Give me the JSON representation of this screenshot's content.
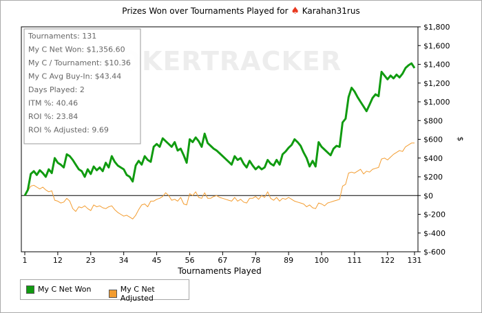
{
  "title": {
    "prefix": "Prizes Won over Tournaments Played for",
    "player": "Karahan31rus"
  },
  "watermark": "POKERTRACKER",
  "stats": [
    "Tournaments: 131",
    "My C Net Won: $1,356.60",
    "My C / Tournament: $10.36",
    "My C Avg Buy-In: $43.44",
    "Days Played: 2",
    "ITM %: 40.46",
    "ROI %: 23.84",
    "ROI % Adjusted: 9.69"
  ],
  "colors": {
    "net_won": "#109b10",
    "adjusted": "#f39c2f",
    "zero_line": "#000000"
  },
  "chart_data": {
    "type": "line",
    "title": "Prizes Won over Tournaments Played for Karahan31rus",
    "xlabel": "Tournaments Played",
    "ylabel": "$",
    "xlim": [
      1,
      131
    ],
    "ylim": [
      -600,
      1800
    ],
    "x_ticks": [
      1,
      12,
      23,
      34,
      45,
      56,
      67,
      78,
      89,
      100,
      111,
      122,
      131
    ],
    "y_ticks": [
      -600,
      -400,
      -200,
      0,
      200,
      400,
      600,
      800,
      1000,
      1200,
      1400,
      1600,
      1800
    ],
    "y_tick_labels": [
      "$-600",
      "$-400",
      "$-200",
      "$0",
      "$200",
      "$400",
      "$600",
      "$800",
      "$1,000",
      "$1,200",
      "$1,400",
      "$1,600",
      "$1,800"
    ],
    "legend_position": "bottom-left",
    "series": [
      {
        "name": "My C Net Won",
        "points": [
          [
            1,
            0
          ],
          [
            2,
            60
          ],
          [
            3,
            230
          ],
          [
            4,
            260
          ],
          [
            5,
            220
          ],
          [
            6,
            270
          ],
          [
            7,
            240
          ],
          [
            8,
            200
          ],
          [
            9,
            280
          ],
          [
            10,
            240
          ],
          [
            11,
            400
          ],
          [
            12,
            350
          ],
          [
            13,
            330
          ],
          [
            14,
            300
          ],
          [
            15,
            440
          ],
          [
            16,
            420
          ],
          [
            17,
            380
          ],
          [
            18,
            330
          ],
          [
            19,
            280
          ],
          [
            20,
            260
          ],
          [
            21,
            200
          ],
          [
            22,
            280
          ],
          [
            23,
            230
          ],
          [
            24,
            310
          ],
          [
            25,
            270
          ],
          [
            26,
            300
          ],
          [
            27,
            260
          ],
          [
            28,
            350
          ],
          [
            29,
            300
          ],
          [
            30,
            420
          ],
          [
            31,
            360
          ],
          [
            32,
            320
          ],
          [
            33,
            300
          ],
          [
            34,
            280
          ],
          [
            35,
            220
          ],
          [
            36,
            200
          ],
          [
            37,
            150
          ],
          [
            38,
            320
          ],
          [
            39,
            370
          ],
          [
            40,
            330
          ],
          [
            41,
            420
          ],
          [
            42,
            380
          ],
          [
            43,
            360
          ],
          [
            44,
            520
          ],
          [
            45,
            550
          ],
          [
            46,
            520
          ],
          [
            47,
            610
          ],
          [
            48,
            580
          ],
          [
            49,
            550
          ],
          [
            50,
            520
          ],
          [
            51,
            570
          ],
          [
            52,
            480
          ],
          [
            53,
            500
          ],
          [
            54,
            430
          ],
          [
            55,
            350
          ],
          [
            56,
            600
          ],
          [
            57,
            570
          ],
          [
            58,
            620
          ],
          [
            59,
            580
          ],
          [
            60,
            520
          ],
          [
            61,
            660
          ],
          [
            62,
            560
          ],
          [
            63,
            530
          ],
          [
            64,
            500
          ],
          [
            65,
            480
          ],
          [
            66,
            450
          ],
          [
            67,
            420
          ],
          [
            68,
            390
          ],
          [
            69,
            360
          ],
          [
            70,
            330
          ],
          [
            71,
            420
          ],
          [
            72,
            380
          ],
          [
            73,
            400
          ],
          [
            74,
            340
          ],
          [
            75,
            300
          ],
          [
            76,
            370
          ],
          [
            77,
            320
          ],
          [
            78,
            280
          ],
          [
            79,
            310
          ],
          [
            80,
            280
          ],
          [
            81,
            300
          ],
          [
            82,
            380
          ],
          [
            83,
            340
          ],
          [
            84,
            320
          ],
          [
            85,
            380
          ],
          [
            86,
            330
          ],
          [
            87,
            440
          ],
          [
            88,
            470
          ],
          [
            89,
            510
          ],
          [
            90,
            540
          ],
          [
            91,
            600
          ],
          [
            92,
            570
          ],
          [
            93,
            530
          ],
          [
            94,
            460
          ],
          [
            95,
            400
          ],
          [
            96,
            310
          ],
          [
            97,
            370
          ],
          [
            98,
            310
          ],
          [
            99,
            570
          ],
          [
            100,
            520
          ],
          [
            101,
            490
          ],
          [
            102,
            460
          ],
          [
            103,
            430
          ],
          [
            104,
            500
          ],
          [
            105,
            530
          ],
          [
            106,
            520
          ],
          [
            107,
            780
          ],
          [
            108,
            820
          ],
          [
            109,
            1050
          ],
          [
            110,
            1150
          ],
          [
            111,
            1110
          ],
          [
            112,
            1050
          ],
          [
            113,
            1000
          ],
          [
            114,
            950
          ],
          [
            115,
            900
          ],
          [
            116,
            970
          ],
          [
            117,
            1040
          ],
          [
            118,
            1080
          ],
          [
            119,
            1060
          ],
          [
            120,
            1320
          ],
          [
            121,
            1280
          ],
          [
            122,
            1240
          ],
          [
            123,
            1280
          ],
          [
            124,
            1250
          ],
          [
            125,
            1290
          ],
          [
            126,
            1260
          ],
          [
            127,
            1300
          ],
          [
            128,
            1360
          ],
          [
            129,
            1390
          ],
          [
            130,
            1410
          ],
          [
            131,
            1360
          ]
        ]
      },
      {
        "name": "My C Net Adjusted",
        "points": [
          [
            1,
            0
          ],
          [
            2,
            50
          ],
          [
            3,
            100
          ],
          [
            4,
            110
          ],
          [
            5,
            90
          ],
          [
            6,
            70
          ],
          [
            7,
            90
          ],
          [
            8,
            60
          ],
          [
            9,
            40
          ],
          [
            10,
            50
          ],
          [
            11,
            -50
          ],
          [
            12,
            -60
          ],
          [
            13,
            -80
          ],
          [
            14,
            -70
          ],
          [
            15,
            -30
          ],
          [
            16,
            -60
          ],
          [
            17,
            -140
          ],
          [
            18,
            -170
          ],
          [
            19,
            -120
          ],
          [
            20,
            -130
          ],
          [
            21,
            -110
          ],
          [
            22,
            -140
          ],
          [
            23,
            -160
          ],
          [
            24,
            -100
          ],
          [
            25,
            -120
          ],
          [
            26,
            -110
          ],
          [
            27,
            -130
          ],
          [
            28,
            -140
          ],
          [
            29,
            -120
          ],
          [
            30,
            -110
          ],
          [
            31,
            -150
          ],
          [
            32,
            -180
          ],
          [
            33,
            -200
          ],
          [
            34,
            -220
          ],
          [
            35,
            -210
          ],
          [
            36,
            -230
          ],
          [
            37,
            -250
          ],
          [
            38,
            -210
          ],
          [
            39,
            -150
          ],
          [
            40,
            -100
          ],
          [
            41,
            -90
          ],
          [
            42,
            -120
          ],
          [
            43,
            -60
          ],
          [
            44,
            -60
          ],
          [
            45,
            -40
          ],
          [
            46,
            -30
          ],
          [
            47,
            -10
          ],
          [
            48,
            30
          ],
          [
            49,
            0
          ],
          [
            50,
            -50
          ],
          [
            51,
            -40
          ],
          [
            52,
            -60
          ],
          [
            53,
            -20
          ],
          [
            54,
            -90
          ],
          [
            55,
            -100
          ],
          [
            56,
            20
          ],
          [
            57,
            0
          ],
          [
            58,
            40
          ],
          [
            59,
            -20
          ],
          [
            60,
            -30
          ],
          [
            61,
            30
          ],
          [
            62,
            -30
          ],
          [
            63,
            -30
          ],
          [
            64,
            -10
          ],
          [
            65,
            0
          ],
          [
            66,
            -20
          ],
          [
            67,
            -30
          ],
          [
            68,
            -40
          ],
          [
            69,
            -50
          ],
          [
            70,
            -60
          ],
          [
            71,
            -20
          ],
          [
            72,
            -60
          ],
          [
            73,
            -40
          ],
          [
            74,
            -70
          ],
          [
            75,
            -80
          ],
          [
            76,
            -30
          ],
          [
            77,
            -30
          ],
          [
            78,
            -10
          ],
          [
            79,
            -40
          ],
          [
            80,
            0
          ],
          [
            81,
            -20
          ],
          [
            82,
            40
          ],
          [
            83,
            -30
          ],
          [
            84,
            -50
          ],
          [
            85,
            -20
          ],
          [
            86,
            -60
          ],
          [
            87,
            -30
          ],
          [
            88,
            -40
          ],
          [
            89,
            -20
          ],
          [
            90,
            -40
          ],
          [
            91,
            -60
          ],
          [
            92,
            -70
          ],
          [
            93,
            -80
          ],
          [
            94,
            -90
          ],
          [
            95,
            -120
          ],
          [
            96,
            -100
          ],
          [
            97,
            -130
          ],
          [
            98,
            -140
          ],
          [
            99,
            -80
          ],
          [
            100,
            -90
          ],
          [
            101,
            -110
          ],
          [
            102,
            -80
          ],
          [
            103,
            -70
          ],
          [
            104,
            -60
          ],
          [
            105,
            -50
          ],
          [
            106,
            -40
          ],
          [
            107,
            100
          ],
          [
            108,
            120
          ],
          [
            109,
            240
          ],
          [
            110,
            250
          ],
          [
            111,
            240
          ],
          [
            112,
            260
          ],
          [
            113,
            280
          ],
          [
            114,
            230
          ],
          [
            115,
            260
          ],
          [
            116,
            250
          ],
          [
            117,
            280
          ],
          [
            118,
            290
          ],
          [
            119,
            300
          ],
          [
            120,
            390
          ],
          [
            121,
            400
          ],
          [
            122,
            380
          ],
          [
            123,
            410
          ],
          [
            124,
            440
          ],
          [
            125,
            460
          ],
          [
            126,
            480
          ],
          [
            127,
            470
          ],
          [
            128,
            520
          ],
          [
            129,
            540
          ],
          [
            130,
            560
          ],
          [
            131,
            560
          ]
        ]
      }
    ]
  }
}
